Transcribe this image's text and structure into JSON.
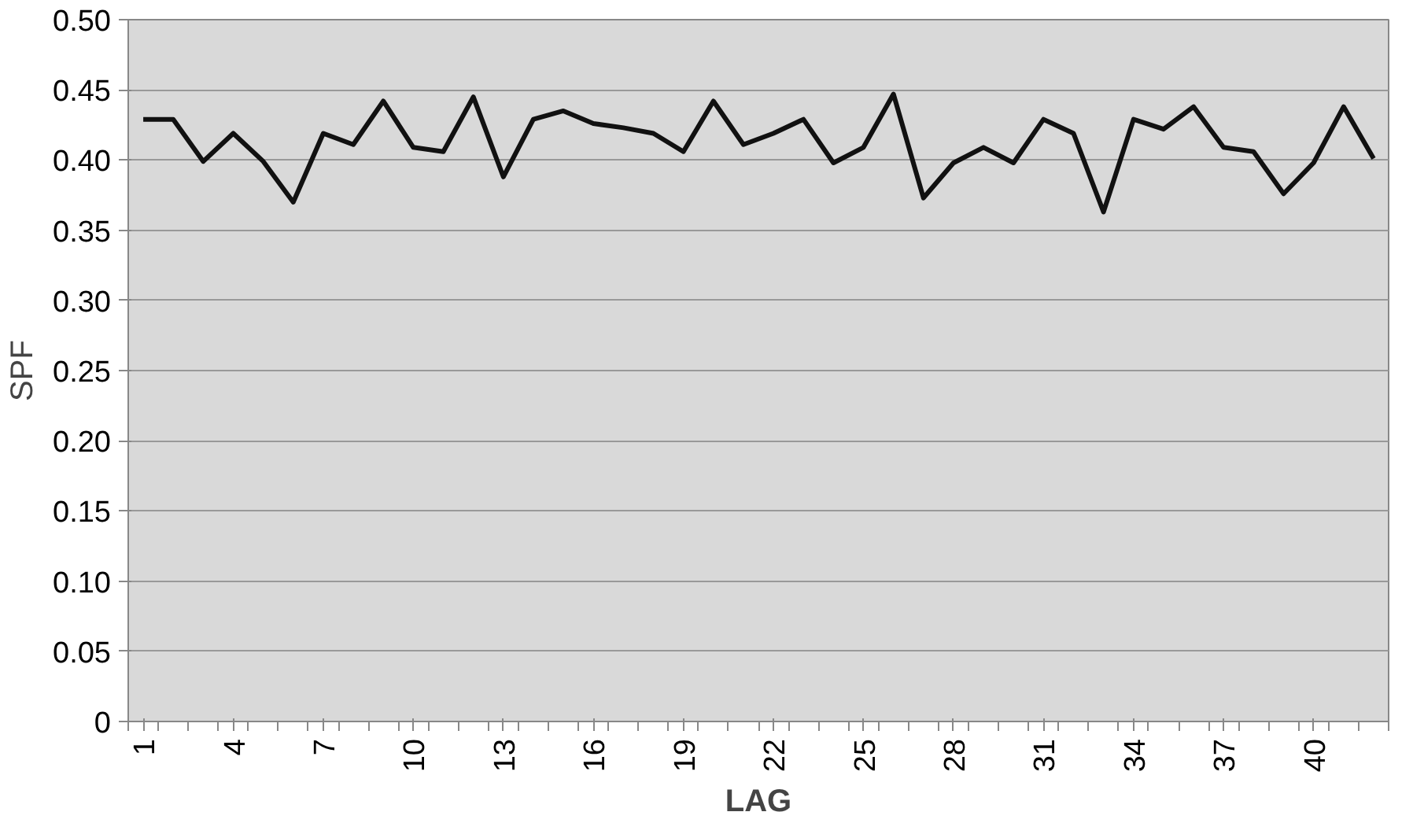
{
  "chart_data": {
    "type": "line",
    "xlabel": "LAG",
    "ylabel": "SPF",
    "categories": [
      "1",
      null,
      null,
      "4",
      null,
      null,
      "7",
      null,
      null,
      "10",
      null,
      null,
      "13",
      null,
      null,
      "16",
      null,
      null,
      "19",
      null,
      null,
      "22",
      null,
      null,
      "25",
      null,
      null,
      "28",
      null,
      null,
      "31",
      null,
      null,
      "34",
      null,
      null,
      "37",
      null,
      null,
      "40",
      null,
      null
    ],
    "series": [
      {
        "color": "#111111",
        "values": [
          0.429,
          0.429,
          0.399,
          0.419,
          0.399,
          0.37,
          0.419,
          0.411,
          0.442,
          0.409,
          0.406,
          0.445,
          0.388,
          0.429,
          0.435,
          0.426,
          0.423,
          0.419,
          0.406,
          0.442,
          0.411,
          0.419,
          0.429,
          0.398,
          0.409,
          0.447,
          0.373,
          0.398,
          0.409,
          0.398,
          0.429,
          0.419,
          0.363,
          0.429,
          0.422,
          0.438,
          0.409,
          0.406,
          0.376,
          0.398,
          0.438,
          0.401
        ]
      }
    ],
    "ylim": [
      0,
      0.5
    ],
    "yticks": [
      {
        "value": 0,
        "label": "0"
      },
      {
        "value": 0.05,
        "label": "0.05"
      },
      {
        "value": 0.1,
        "label": "0.10"
      },
      {
        "value": 0.15,
        "label": "0.15"
      },
      {
        "value": 0.2,
        "label": "0.20"
      },
      {
        "value": 0.25,
        "label": "0.25"
      },
      {
        "value": 0.3,
        "label": "0.30"
      },
      {
        "value": 0.35,
        "label": "0.35"
      },
      {
        "value": 0.4,
        "label": "0.40"
      },
      {
        "value": 0.45,
        "label": "0.45"
      },
      {
        "value": 0.5,
        "label": "0.50"
      }
    ],
    "grid": "y",
    "marker": "none",
    "line_style": "solid"
  }
}
